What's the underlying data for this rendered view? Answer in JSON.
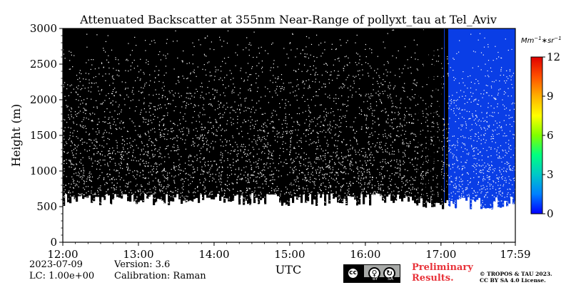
{
  "chart_data": {
    "type": "heatmap",
    "title": "Attenuated Backscatter at 355nm Near-Range of pollyxt_tau at Tel_Aviv",
    "xlabel": "UTC",
    "ylabel": "Height (m)",
    "x_range": [
      "12:00",
      "17:59"
    ],
    "x_range_hours": [
      12.0,
      17.983
    ],
    "x_ticks": [
      "12:00",
      "13:00",
      "14:00",
      "15:00",
      "16:00",
      "17:00",
      "17:59"
    ],
    "x_tick_hours": [
      12,
      13,
      14,
      15,
      16,
      17,
      17.983
    ],
    "ylim": [
      0,
      3000
    ],
    "y_ticks": [
      0,
      500,
      1000,
      1500,
      2000,
      2500,
      3000
    ],
    "colorbar": {
      "unit_label": "Mm",
      "unit_exp1": "−1",
      "unit_mid": "∗sr",
      "unit_exp2": "−1",
      "range": [
        0,
        12
      ],
      "ticks": [
        0,
        3,
        6,
        9,
        12
      ],
      "colors": [
        "#0000ff",
        "#0080ff",
        "#00c8c8",
        "#00ff80",
        "#80ff00",
        "#ffff00",
        "#ffb000",
        "#ff5000",
        "#e00000"
      ]
    },
    "regions": [
      {
        "x_start": "12:00",
        "x_end": "16:40",
        "appearance": "black noisy signal, white speckle",
        "lowest_signal_m": 600
      },
      {
        "x_start": "16:40",
        "x_end": "17:05",
        "appearance": "mostly black columns with blue streaks",
        "lowest_signal_m": 550
      },
      {
        "x_start": "17:05",
        "x_end": "17:59",
        "appearance": "blue (low backscatter) with speckle",
        "lowest_signal_m": 550
      }
    ]
  },
  "meta": {
    "date": "2023-07-09",
    "lc": "LC: 1.00e+00",
    "version": "Version: 3.6",
    "calibration": "Calibration: Raman"
  },
  "license": {
    "badge_cc": "cc",
    "badge_by": "BY",
    "badge_sa": "SA",
    "preliminary_line1": "Preliminary",
    "preliminary_line2": "Results.",
    "copyright_line1": "© TROPOS & TAU 2023.",
    "copyright_line2": "CC BY SA 4.0 License."
  }
}
